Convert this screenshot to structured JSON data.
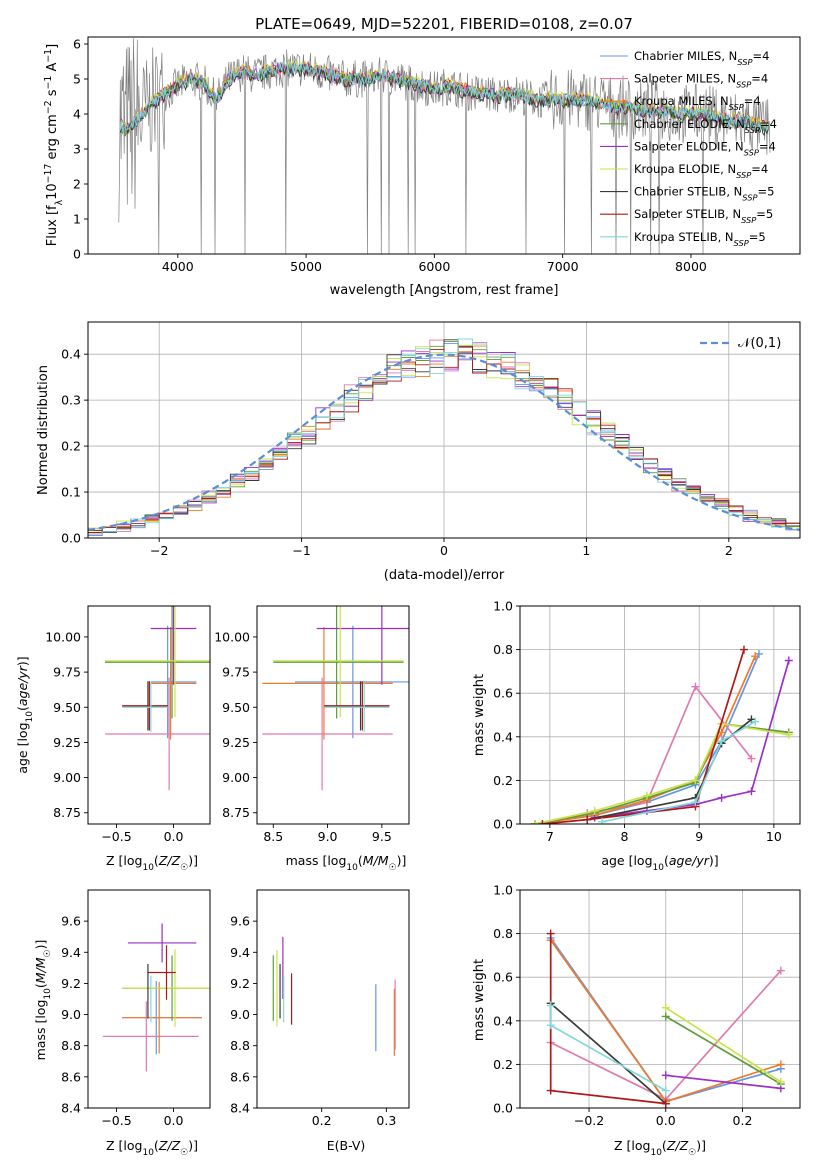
{
  "page_title": "PLATE=0649, MJD=52201, FIBERID=0108, z=0.07",
  "model_colors": [
    "#6495ed",
    "#e27ab0",
    "#f07b26",
    "#5d9e3a",
    "#9b30c8",
    "#c8e34a",
    "#3a3a3a",
    "#b01818",
    "#7fd8dc"
  ],
  "chart_data": [
    {
      "id": "spectrum",
      "type": "line",
      "title": "PLATE=0649, MJD=52201, FIBERID=0108, z=0.07",
      "xlabel": "wavelength [Angstrom, rest frame]",
      "ylabel": "Flux [f_λ 10^-17 erg cm^-2 s^-1 A^-1]",
      "xlim": [
        3300,
        8850
      ],
      "ylim": [
        0,
        6.2
      ],
      "xticks": [
        "4000",
        "5000",
        "6000",
        "7000",
        "8000"
      ],
      "yticks": [
        "0",
        "1",
        "2",
        "3",
        "4",
        "5",
        "6"
      ],
      "legend": "top-right",
      "data_color": "#808080",
      "series": [
        {
          "name": "Chabrier MILES, N_SSP=4",
          "color": "#6495ed"
        },
        {
          "name": "Salpeter MILES, N_SSP=4",
          "color": "#e27ab0"
        },
        {
          "name": "Kroupa MILES, N_SSP=4",
          "color": "#f07b26"
        },
        {
          "name": "Chabrier ELODIE, N_SSP=4",
          "color": "#5d9e3a"
        },
        {
          "name": "Salpeter ELODIE, N_SSP=4",
          "color": "#9b30c8"
        },
        {
          "name": "Kroupa ELODIE, N_SSP=4",
          "color": "#c8e34a"
        },
        {
          "name": "Chabrier STELIB, N_SSP=5",
          "color": "#3a3a3a"
        },
        {
          "name": "Salpeter STELIB, N_SSP=5",
          "color": "#b01818"
        },
        {
          "name": "Kroupa STELIB, N_SSP=5",
          "color": "#7fd8dc"
        }
      ],
      "continuum": {
        "x": [
          3550,
          3600,
          3700,
          3800,
          3900,
          4000,
          4100,
          4200,
          4300,
          4400,
          4500,
          4600,
          4700,
          4800,
          4900,
          5000,
          5100,
          5200,
          5300,
          5400,
          5500,
          5600,
          5700,
          5800,
          5900,
          6000,
          6100,
          6200,
          6300,
          6400,
          6500,
          6600,
          6700,
          6800,
          6900,
          7000,
          7100,
          7200,
          7300,
          7400,
          7500,
          7600,
          7700,
          7800,
          7900,
          8000,
          8100,
          8200,
          8300,
          8400,
          8500,
          8600
        ],
        "y": [
          3.7,
          3.5,
          3.9,
          4.3,
          4.6,
          4.8,
          5.0,
          4.9,
          4.4,
          5.0,
          5.2,
          5.1,
          5.2,
          5.3,
          5.3,
          5.3,
          5.2,
          5.1,
          5.0,
          5.0,
          5.0,
          5.1,
          5.0,
          4.9,
          4.8,
          4.7,
          4.8,
          4.7,
          4.6,
          4.6,
          4.5,
          4.6,
          4.5,
          4.4,
          4.4,
          4.4,
          4.4,
          4.4,
          4.3,
          4.2,
          4.2,
          4.1,
          4.1,
          4.1,
          4.0,
          4.0,
          4.0,
          3.9,
          3.8,
          3.8,
          3.7,
          3.6
        ]
      }
    },
    {
      "id": "residual_histogram",
      "type": "histogram",
      "xlabel": "(data-model)/error",
      "ylabel": "Normed distribution",
      "xlim": [
        -2.5,
        2.5
      ],
      "ylim": [
        0,
        0.47
      ],
      "xticks": [
        "−2",
        "−1",
        "0",
        "1",
        "2"
      ],
      "yticks": [
        "0.0",
        "0.1",
        "0.2",
        "0.3",
        "0.4"
      ],
      "legend": "top-right",
      "reference": {
        "name": "𝒩(0,1)",
        "color": "#5a8fd8",
        "style": "dashed"
      },
      "bin_edges_start": -2.5,
      "bin_width": 0.1
    },
    {
      "id": "age_vs_Z",
      "type": "errorbar",
      "xlabel": "Z [log10(Z/Z☉)]",
      "ylabel": "age  [log10(age/yr)]",
      "xlim": [
        -0.75,
        0.32
      ],
      "ylim": [
        8.67,
        10.22
      ],
      "xticks": [
        "−0.5",
        "0.0"
      ],
      "yticks": [
        "8.75",
        "9.00",
        "9.25",
        "9.50",
        "9.75",
        "10.00"
      ],
      "points": [
        {
          "x": 0.0,
          "xerr": 0.2,
          "y": 9.68,
          "yerr": 0.8
        },
        {
          "x": 0.0,
          "xerr": 0.6,
          "y": 9.31,
          "yerr": 0.8
        },
        {
          "x": 0.0,
          "xerr": 0.2,
          "y": 9.67,
          "yerr": 0.8
        },
        {
          "x": 0.0,
          "xerr": 0.6,
          "y": 9.82,
          "yerr": 0.8
        },
        {
          "x": 0.0,
          "xerr": 0.2,
          "y": 10.06,
          "yerr": 0.8
        },
        {
          "x": 0.0,
          "xerr": 0.6,
          "y": 9.83,
          "yerr": 0.8
        },
        {
          "x": -0.25,
          "xerr": 0.2,
          "y": 9.51,
          "yerr": 0.35
        },
        {
          "x": -0.25,
          "xerr": 0.2,
          "y": 9.51,
          "yerr": 0.35
        },
        {
          "x": -0.25,
          "xerr": 0.2,
          "y": 9.5,
          "yerr": 0.35
        }
      ]
    },
    {
      "id": "age_vs_mass",
      "type": "errorbar",
      "xlabel": "mass [log10(M/M☉)]",
      "ylabel": "",
      "xlim": [
        8.35,
        9.75
      ],
      "ylim": [
        8.67,
        10.22
      ],
      "xticks": [
        "8.5",
        "9.0",
        "9.5"
      ],
      "yticks": [
        "8.75",
        "9.00",
        "9.25",
        "9.50",
        "9.75",
        "10.00"
      ],
      "points": [
        {
          "x": 9.3,
          "xerr": 0.6,
          "y": 9.68,
          "yerr": 0.8
        },
        {
          "x": 9.0,
          "xerr": 0.6,
          "y": 9.31,
          "yerr": 0.8
        },
        {
          "x": 9.0,
          "xerr": 0.6,
          "y": 9.67,
          "yerr": 0.8
        },
        {
          "x": 9.1,
          "xerr": 0.6,
          "y": 9.82,
          "yerr": 0.8
        },
        {
          "x": 9.5,
          "xerr": 0.6,
          "y": 10.06,
          "yerr": 0.8
        },
        {
          "x": 9.1,
          "xerr": 0.6,
          "y": 9.83,
          "yerr": 0.8
        },
        {
          "x": 9.27,
          "xerr": 0.3,
          "y": 9.51,
          "yerr": 0.35
        },
        {
          "x": 9.27,
          "xerr": 0.3,
          "y": 9.51,
          "yerr": 0.35
        },
        {
          "x": 9.27,
          "xerr": 0.3,
          "y": 9.5,
          "yerr": 0.35
        }
      ]
    },
    {
      "id": "mass_weight_vs_age",
      "type": "line",
      "xlabel": "age  [log10(age/yr)]",
      "ylabel": "mass weight",
      "xlim": [
        6.6,
        10.35
      ],
      "ylim": [
        0,
        1.0
      ],
      "xticks": [
        "7",
        "8",
        "9",
        "10"
      ],
      "yticks": [
        "0.0",
        "0.2",
        "0.4",
        "0.6",
        "0.8",
        "1.0"
      ],
      "series": [
        {
          "x": [
            6.8,
            7.6,
            8.3,
            8.95,
            9.3,
            9.8
          ],
          "y": [
            0.0,
            0.04,
            0.1,
            0.18,
            0.38,
            0.78
          ]
        },
        {
          "x": [
            6.8,
            7.5,
            8.3,
            8.95,
            9.7
          ],
          "y": [
            0.0,
            0.05,
            0.1,
            0.63,
            0.3
          ]
        },
        {
          "x": [
            6.8,
            7.6,
            8.3,
            8.95,
            9.3,
            9.75
          ],
          "y": [
            0.0,
            0.04,
            0.11,
            0.2,
            0.42,
            0.77
          ]
        },
        {
          "x": [
            6.8,
            7.6,
            8.3,
            8.95,
            9.3,
            10.2
          ],
          "y": [
            0.0,
            0.05,
            0.12,
            0.19,
            0.46,
            0.42
          ]
        },
        {
          "x": [
            7.6,
            8.3,
            8.95,
            9.3,
            9.7,
            10.2
          ],
          "y": [
            0.03,
            0.06,
            0.09,
            0.12,
            0.15,
            0.75
          ]
        },
        {
          "x": [
            6.8,
            7.6,
            8.3,
            8.95,
            9.3,
            10.2
          ],
          "y": [
            0.0,
            0.06,
            0.13,
            0.2,
            0.46,
            0.41
          ]
        },
        {
          "x": [
            7.5,
            8.95,
            9.3,
            9.7
          ],
          "y": [
            0.02,
            0.12,
            0.37,
            0.48
          ]
        },
        {
          "x": [
            6.9,
            7.5,
            8.95,
            9.6
          ],
          "y": [
            0.0,
            0.02,
            0.08,
            0.8
          ]
        },
        {
          "x": [
            7.7,
            8.95,
            9.3,
            9.75
          ],
          "y": [
            0.01,
            0.1,
            0.38,
            0.47
          ]
        }
      ]
    },
    {
      "id": "mass_vs_Z",
      "type": "errorbar",
      "xlabel": "Z [log10(Z/Z☉)]",
      "ylabel": "mass [log10(M/M☉)]",
      "xlim": [
        -0.75,
        0.32
      ],
      "ylim": [
        8.4,
        9.8
      ],
      "xticks": [
        "−0.5",
        "0.0"
      ],
      "yticks": [
        "8.4",
        "8.6",
        "8.8",
        "9.0",
        "9.2",
        "9.4",
        "9.6"
      ],
      "points": [
        {
          "x": -0.1,
          "xerr": 0.35,
          "y": 8.98,
          "yerr": 0.47
        },
        {
          "x": -0.2,
          "xerr": 0.42,
          "y": 8.86,
          "yerr": 0.45
        },
        {
          "x": -0.1,
          "xerr": 0.35,
          "y": 8.98,
          "yerr": 0.46
        },
        {
          "x": 0.0,
          "xerr": 0.45,
          "y": 9.17,
          "yerr": 0.42
        },
        {
          "x": -0.1,
          "xerr": 0.3,
          "y": 9.46,
          "yerr": 0.25
        },
        {
          "x": 0.0,
          "xerr": 0.45,
          "y": 9.17,
          "yerr": 0.5
        },
        {
          "x": -0.25,
          "xerr": 0.0,
          "y": 9.15,
          "yerr": 0.35
        },
        {
          "x": -0.1,
          "xerr": 0.12,
          "y": 9.27,
          "yerr": 0.35
        },
        {
          "x": -0.25,
          "xerr": 0.0,
          "y": 9.1,
          "yerr": 0.3
        }
      ]
    },
    {
      "id": "mass_vs_ebv",
      "type": "errorbar",
      "xlabel": "E(B-V)",
      "ylabel": "",
      "xlim": [
        0.1,
        0.335
      ],
      "ylim": [
        8.4,
        9.8
      ],
      "xticks": [
        "0.2",
        "0.3"
      ],
      "yticks": [
        "8.4",
        "8.6",
        "8.8",
        "9.0",
        "9.2",
        "9.4",
        "9.6"
      ],
      "points": [
        {
          "x": 0.295,
          "y": 8.98,
          "yerr": 0.43
        },
        {
          "x": 0.322,
          "y": 9.0,
          "yerr": 0.45
        },
        {
          "x": 0.318,
          "y": 8.95,
          "yerr": 0.43
        },
        {
          "x": 0.128,
          "y": 9.17,
          "yerr": 0.42
        },
        {
          "x": 0.14,
          "y": 9.3,
          "yerr": 0.4
        },
        {
          "x": 0.128,
          "y": 9.17,
          "yerr": 0.49
        },
        {
          "x": 0.13,
          "y": 9.15,
          "yerr": 0.35
        },
        {
          "x": 0.145,
          "y": 9.1,
          "yerr": 0.33
        },
        {
          "x": 0.13,
          "y": 9.1,
          "yerr": 0.3
        }
      ]
    },
    {
      "id": "mass_weight_vs_Z",
      "type": "line",
      "xlabel": "Z [log10(Z/Z☉)]",
      "ylabel": "mass weight",
      "xlim": [
        -0.38,
        0.35
      ],
      "ylim": [
        0,
        1.0
      ],
      "xticks": [
        "−0.2",
        "0.0",
        "0.2"
      ],
      "yticks": [
        "0.0",
        "0.2",
        "0.4",
        "0.6",
        "0.8",
        "1.0"
      ],
      "series": [
        {
          "x": [
            -0.3,
            0.0,
            0.3
          ],
          "y": [
            0.78,
            0.03,
            0.18
          ]
        },
        {
          "x": [
            -0.3,
            0.0,
            0.3
          ],
          "y": [
            0.3,
            0.04,
            0.63
          ]
        },
        {
          "x": [
            -0.3,
            0.0,
            0.3
          ],
          "y": [
            0.77,
            0.03,
            0.2
          ]
        },
        {
          "x": [
            0.0,
            0.3
          ],
          "y": [
            0.42,
            0.11
          ]
        },
        {
          "x": [
            0.0,
            0.3
          ],
          "y": [
            0.15,
            0.09
          ]
        },
        {
          "x": [
            0.0,
            0.3
          ],
          "y": [
            0.46,
            0.12
          ]
        },
        {
          "x": [
            -0.3,
            0.0
          ],
          "y": [
            0.48,
            0.02
          ]
        },
        {
          "x": [
            -0.3,
            -0.3,
            0.0
          ],
          "y": [
            0.8,
            0.08,
            0.02
          ]
        },
        {
          "x": [
            -0.3,
            -0.3,
            0.0
          ],
          "y": [
            0.47,
            0.38,
            0.08
          ]
        }
      ]
    }
  ]
}
